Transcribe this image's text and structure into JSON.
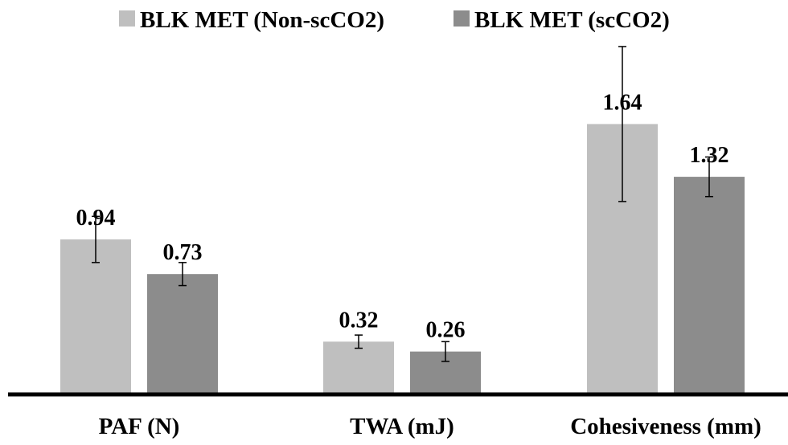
{
  "chart_data": {
    "type": "bar",
    "categories": [
      "PAF (N)",
      "TWA (mJ)",
      "Cohesiveness (mm)"
    ],
    "series": [
      {
        "name": "BLK MET (Non-scCO2)",
        "values": [
          0.94,
          0.32,
          1.64
        ],
        "labels": [
          "0.94",
          "0.32",
          "1.64"
        ],
        "error": [
          0.14,
          0.04,
          0.47
        ],
        "color": "#bfbfbf"
      },
      {
        "name": "BLK MET (scCO2)",
        "values": [
          0.73,
          0.26,
          1.32
        ],
        "labels": [
          "0.73",
          "0.26",
          "1.32"
        ],
        "error": [
          0.07,
          0.06,
          0.12
        ],
        "color": "#8c8c8c"
      }
    ],
    "ylim": [
      0,
      2.1
    ],
    "grid": false,
    "legend_position": "top"
  }
}
